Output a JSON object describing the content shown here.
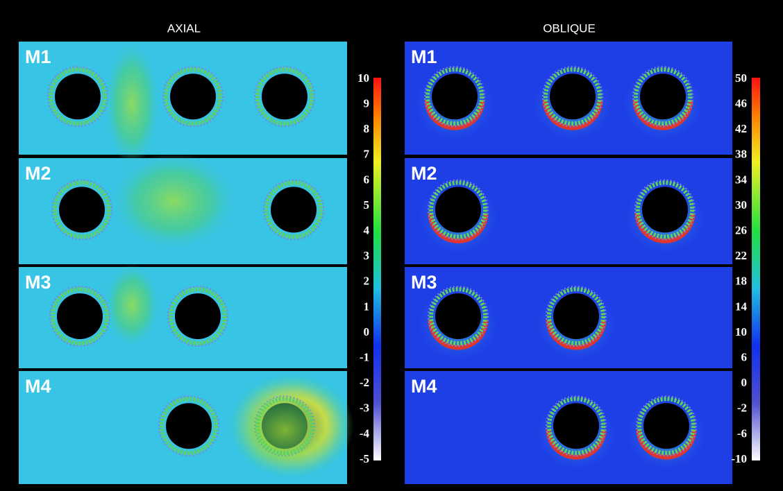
{
  "panels": [
    {
      "title": "AXIAL",
      "rows": [
        "M1",
        "M2",
        "M3",
        "M4"
      ],
      "colorbar": {
        "ticks": [
          10,
          9,
          8,
          7,
          6,
          5,
          4,
          3,
          2,
          1,
          0,
          -1,
          -2,
          -3,
          -4,
          -5
        ]
      }
    },
    {
      "title": "OBLIQUE",
      "rows": [
        "M1",
        "M2",
        "M3",
        "M4"
      ],
      "colorbar": {
        "ticks": [
          50,
          46,
          42,
          38,
          34,
          30,
          26,
          22,
          18,
          14,
          10,
          6,
          0,
          -2,
          -6,
          -10
        ]
      }
    }
  ]
}
